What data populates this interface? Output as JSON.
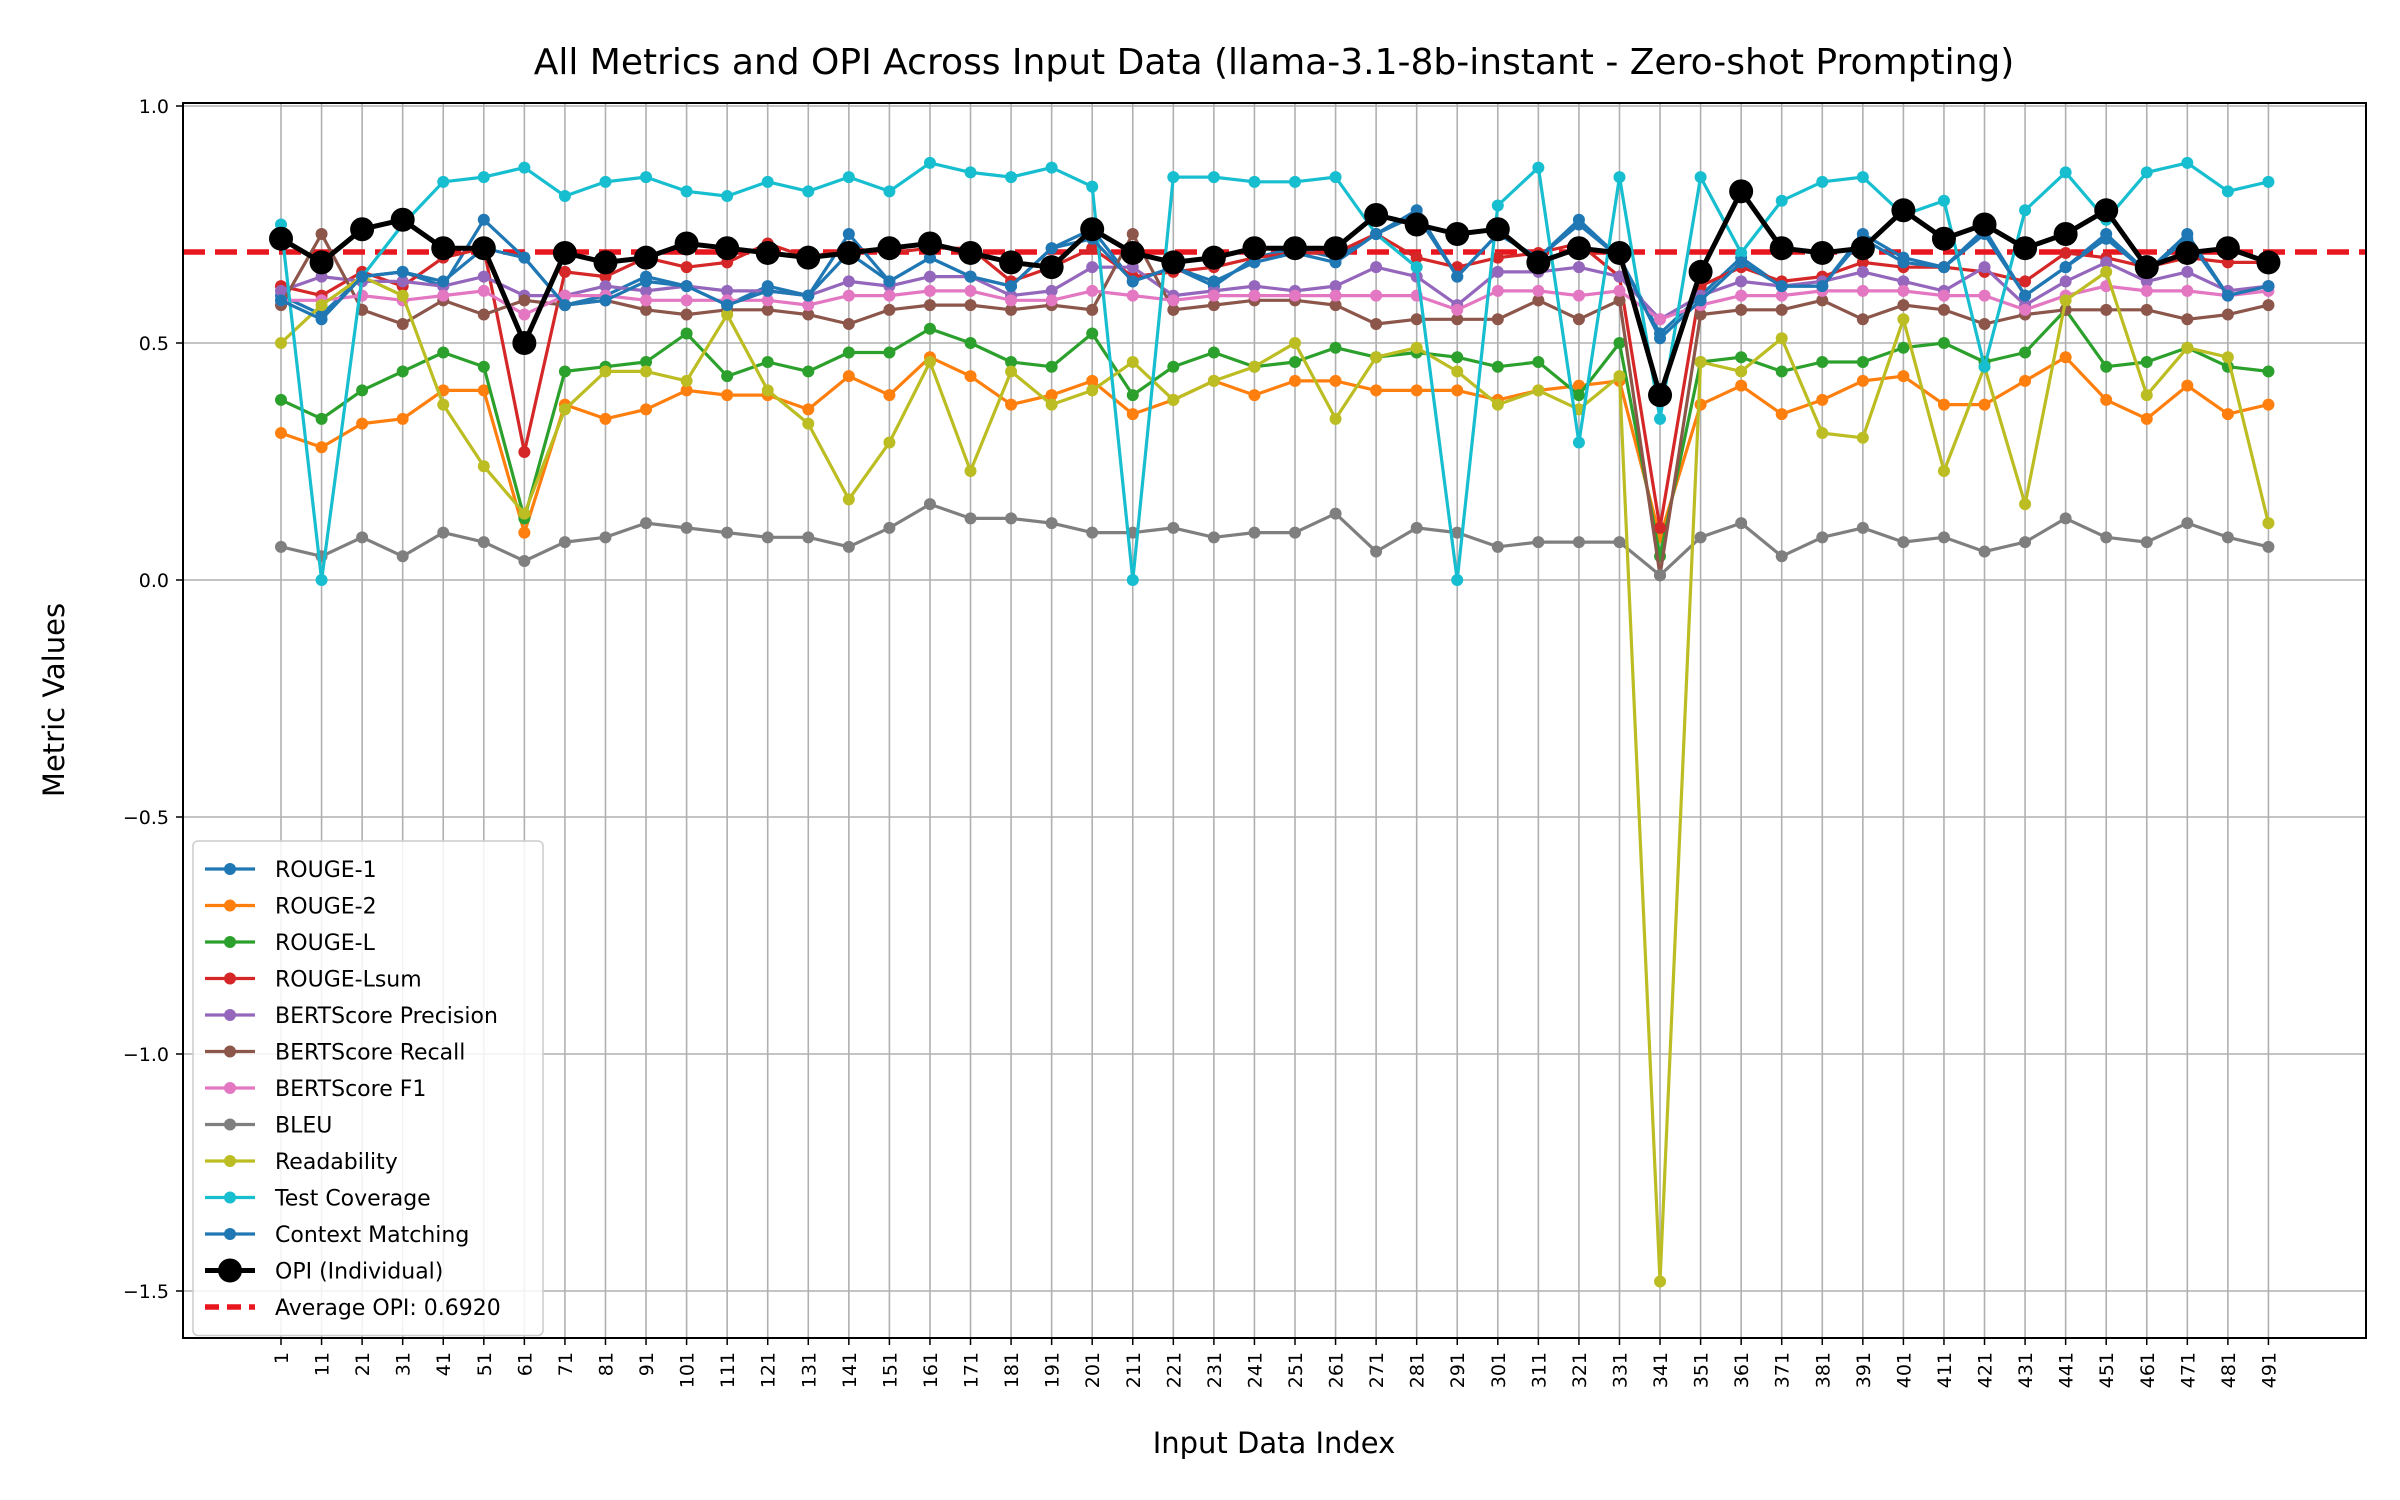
{
  "chart_data": {
    "type": "line",
    "title": "All Metrics and OPI Across Input Data (llama-3.1-8b-instant - Zero-shot Prompting)",
    "xlabel": "Input Data Index",
    "ylabel": "Metric Values",
    "ylim": [
      -1.6,
      1.0
    ],
    "yticks": [
      1.0,
      0.5,
      0.0,
      -0.5,
      -1.0,
      -1.5
    ],
    "ytick_labels": [
      "1.0",
      "0.5",
      "0.0",
      "−0.5",
      "−1.0",
      "−1.5"
    ],
    "x": [
      1,
      11,
      21,
      31,
      41,
      51,
      61,
      71,
      81,
      91,
      101,
      111,
      121,
      131,
      141,
      151,
      161,
      171,
      181,
      191,
      201,
      211,
      221,
      231,
      241,
      251,
      261,
      271,
      281,
      291,
      301,
      311,
      321,
      331,
      341,
      351,
      361,
      371,
      381,
      391,
      401,
      411,
      421,
      431,
      441,
      451,
      461,
      471,
      481,
      491
    ],
    "grid": true,
    "legend_position": "lower-left",
    "average_opi": {
      "label": "Average OPI: 0.6920",
      "value": 0.692,
      "color": "#e8161f"
    },
    "series": [
      {
        "name": "ROUGE-1",
        "color": "#1f77b4",
        "values": [
          0.6,
          0.56,
          0.64,
          0.65,
          0.62,
          0.76,
          0.68,
          0.58,
          0.6,
          0.64,
          0.62,
          0.58,
          0.62,
          0.6,
          0.73,
          0.63,
          0.68,
          0.64,
          0.62,
          0.7,
          0.74,
          0.63,
          0.66,
          0.62,
          0.68,
          0.7,
          0.68,
          0.73,
          0.77,
          0.64,
          0.73,
          0.68,
          0.76,
          0.68,
          0.52,
          0.6,
          0.68,
          0.62,
          0.62,
          0.73,
          0.68,
          0.66,
          0.74,
          0.6,
          0.66,
          0.73,
          0.65,
          0.73,
          0.6,
          0.62
        ]
      },
      {
        "name": "ROUGE-2",
        "color": "#ff7f0e",
        "values": [
          0.31,
          0.28,
          0.33,
          0.34,
          0.4,
          0.4,
          0.1,
          0.37,
          0.34,
          0.36,
          0.4,
          0.39,
          0.39,
          0.36,
          0.43,
          0.39,
          0.47,
          0.43,
          0.37,
          0.39,
          0.42,
          0.35,
          0.38,
          0.42,
          0.39,
          0.42,
          0.42,
          0.4,
          0.4,
          0.4,
          0.38,
          0.4,
          0.41,
          0.42,
          0.09,
          0.37,
          0.41,
          0.35,
          0.38,
          0.42,
          0.43,
          0.37,
          0.37,
          0.42,
          0.47,
          0.38,
          0.34,
          0.41,
          0.35,
          0.37
        ]
      },
      {
        "name": "ROUGE-L",
        "color": "#2ca02c",
        "values": [
          0.38,
          0.34,
          0.4,
          0.44,
          0.48,
          0.45,
          0.13,
          0.44,
          0.45,
          0.46,
          0.52,
          0.43,
          0.46,
          0.44,
          0.48,
          0.48,
          0.53,
          0.5,
          0.46,
          0.45,
          0.52,
          0.39,
          0.45,
          0.48,
          0.45,
          0.46,
          0.49,
          0.47,
          0.48,
          0.47,
          0.45,
          0.46,
          0.39,
          0.5,
          0.05,
          0.46,
          0.47,
          0.44,
          0.46,
          0.46,
          0.49,
          0.5,
          0.46,
          0.48,
          0.57,
          0.45,
          0.46,
          0.49,
          0.45,
          0.44
        ]
      },
      {
        "name": "ROUGE-Lsum",
        "color": "#d62728",
        "values": [
          0.62,
          0.6,
          0.65,
          0.62,
          0.68,
          0.7,
          0.27,
          0.65,
          0.64,
          0.68,
          0.66,
          0.67,
          0.71,
          0.68,
          0.7,
          0.69,
          0.7,
          0.7,
          0.63,
          0.66,
          0.7,
          0.64,
          0.65,
          0.66,
          0.68,
          0.69,
          0.69,
          0.73,
          0.68,
          0.66,
          0.68,
          0.69,
          0.71,
          0.64,
          0.11,
          0.62,
          0.66,
          0.63,
          0.64,
          0.67,
          0.66,
          0.66,
          0.65,
          0.63,
          0.69,
          0.68,
          0.66,
          0.68,
          0.67,
          0.67
        ]
      },
      {
        "name": "BERTScore Precision",
        "color": "#9467bd",
        "values": [
          0.61,
          0.64,
          0.63,
          0.63,
          0.62,
          0.64,
          0.6,
          0.6,
          0.62,
          0.61,
          0.62,
          0.61,
          0.61,
          0.6,
          0.63,
          0.62,
          0.64,
          0.64,
          0.6,
          0.61,
          0.66,
          0.66,
          0.6,
          0.61,
          0.62,
          0.61,
          0.62,
          0.66,
          0.64,
          0.58,
          0.65,
          0.65,
          0.66,
          0.64,
          0.55,
          0.6,
          0.63,
          0.62,
          0.63,
          0.65,
          0.63,
          0.61,
          0.66,
          0.58,
          0.63,
          0.67,
          0.63,
          0.65,
          0.61,
          0.62
        ]
      },
      {
        "name": "BERTScore Recall",
        "color": "#8c564b",
        "values": [
          0.58,
          0.73,
          0.57,
          0.54,
          0.59,
          0.56,
          0.59,
          0.58,
          0.59,
          0.57,
          0.56,
          0.57,
          0.57,
          0.56,
          0.54,
          0.57,
          0.58,
          0.58,
          0.57,
          0.58,
          0.57,
          0.73,
          0.57,
          0.58,
          0.59,
          0.59,
          0.58,
          0.54,
          0.55,
          0.55,
          0.55,
          0.59,
          0.55,
          0.59,
          0.01,
          0.56,
          0.57,
          0.57,
          0.59,
          0.55,
          0.58,
          0.57,
          0.54,
          0.56,
          0.57,
          0.57,
          0.57,
          0.55,
          0.56,
          0.58
        ]
      },
      {
        "name": "BERTScore F1",
        "color": "#e377c2",
        "values": [
          0.59,
          0.59,
          0.6,
          0.59,
          0.6,
          0.61,
          0.56,
          0.6,
          0.6,
          0.59,
          0.59,
          0.59,
          0.59,
          0.58,
          0.6,
          0.6,
          0.61,
          0.61,
          0.59,
          0.59,
          0.61,
          0.6,
          0.59,
          0.6,
          0.6,
          0.6,
          0.6,
          0.6,
          0.6,
          0.57,
          0.61,
          0.61,
          0.6,
          0.61,
          0.55,
          0.58,
          0.6,
          0.6,
          0.61,
          0.61,
          0.61,
          0.6,
          0.6,
          0.57,
          0.6,
          0.62,
          0.61,
          0.61,
          0.6,
          0.61
        ]
      },
      {
        "name": "BLEU",
        "color": "#7f7f7f",
        "values": [
          0.07,
          0.05,
          0.09,
          0.05,
          0.1,
          0.08,
          0.04,
          0.08,
          0.09,
          0.12,
          0.11,
          0.1,
          0.09,
          0.09,
          0.07,
          0.11,
          0.16,
          0.13,
          0.13,
          0.12,
          0.1,
          0.1,
          0.11,
          0.09,
          0.1,
          0.1,
          0.14,
          0.06,
          0.11,
          0.1,
          0.07,
          0.08,
          0.08,
          0.08,
          0.01,
          0.09,
          0.12,
          0.05,
          0.09,
          0.11,
          0.08,
          0.09,
          0.06,
          0.08,
          0.13,
          0.09,
          0.08,
          0.12,
          0.09,
          0.07
        ]
      },
      {
        "name": "Readability",
        "color": "#bcbd22",
        "values": [
          0.5,
          0.58,
          0.64,
          0.6,
          0.37,
          0.24,
          0.14,
          0.36,
          0.44,
          0.44,
          0.42,
          0.56,
          0.4,
          0.33,
          0.17,
          0.29,
          0.46,
          0.23,
          0.44,
          0.37,
          0.4,
          0.46,
          0.38,
          0.42,
          0.45,
          0.5,
          0.34,
          0.47,
          0.49,
          0.44,
          0.37,
          0.4,
          0.36,
          0.43,
          -1.48,
          0.46,
          0.44,
          0.51,
          0.31,
          0.3,
          0.55,
          0.23,
          0.45,
          0.16,
          0.59,
          0.65,
          0.39,
          0.49,
          0.47,
          0.12
        ]
      },
      {
        "name": "Test Coverage",
        "color": "#17becf",
        "values": [
          0.75,
          0.0,
          0.64,
          0.75,
          0.84,
          0.85,
          0.87,
          0.81,
          0.84,
          0.85,
          0.82,
          0.81,
          0.84,
          0.82,
          0.85,
          0.82,
          0.88,
          0.86,
          0.85,
          0.87,
          0.83,
          0.0,
          0.85,
          0.85,
          0.84,
          0.84,
          0.85,
          0.73,
          0.66,
          0.0,
          0.79,
          0.87,
          0.29,
          0.85,
          0.34,
          0.85,
          0.69,
          0.8,
          0.84,
          0.85,
          0.77,
          0.8,
          0.45,
          0.78,
          0.86,
          0.76,
          0.86,
          0.88,
          0.82,
          0.84
        ]
      },
      {
        "name": "Context Matching",
        "color": "#1f77b4",
        "values": [
          0.59,
          0.55,
          0.64,
          0.65,
          0.63,
          0.7,
          0.68,
          0.58,
          0.59,
          0.63,
          0.62,
          0.58,
          0.61,
          0.6,
          0.69,
          0.63,
          0.68,
          0.64,
          0.62,
          0.7,
          0.72,
          0.63,
          0.66,
          0.63,
          0.67,
          0.69,
          0.67,
          0.73,
          0.78,
          0.64,
          0.73,
          0.68,
          0.75,
          0.68,
          0.51,
          0.59,
          0.67,
          0.62,
          0.62,
          0.72,
          0.67,
          0.66,
          0.73,
          0.6,
          0.66,
          0.72,
          0.65,
          0.72,
          0.6,
          0.62
        ]
      },
      {
        "name": "OPI (Individual)",
        "color": "#000000",
        "values": [
          0.72,
          0.67,
          0.74,
          0.76,
          0.7,
          0.7,
          0.5,
          0.69,
          0.67,
          0.68,
          0.71,
          0.7,
          0.69,
          0.68,
          0.69,
          0.7,
          0.71,
          0.69,
          0.67,
          0.66,
          0.74,
          0.69,
          0.67,
          0.68,
          0.7,
          0.7,
          0.7,
          0.77,
          0.75,
          0.73,
          0.74,
          0.67,
          0.7,
          0.69,
          0.39,
          0.65,
          0.82,
          0.7,
          0.69,
          0.7,
          0.78,
          0.72,
          0.75,
          0.7,
          0.73,
          0.78,
          0.66,
          0.69,
          0.7,
          0.67
        ]
      }
    ]
  }
}
